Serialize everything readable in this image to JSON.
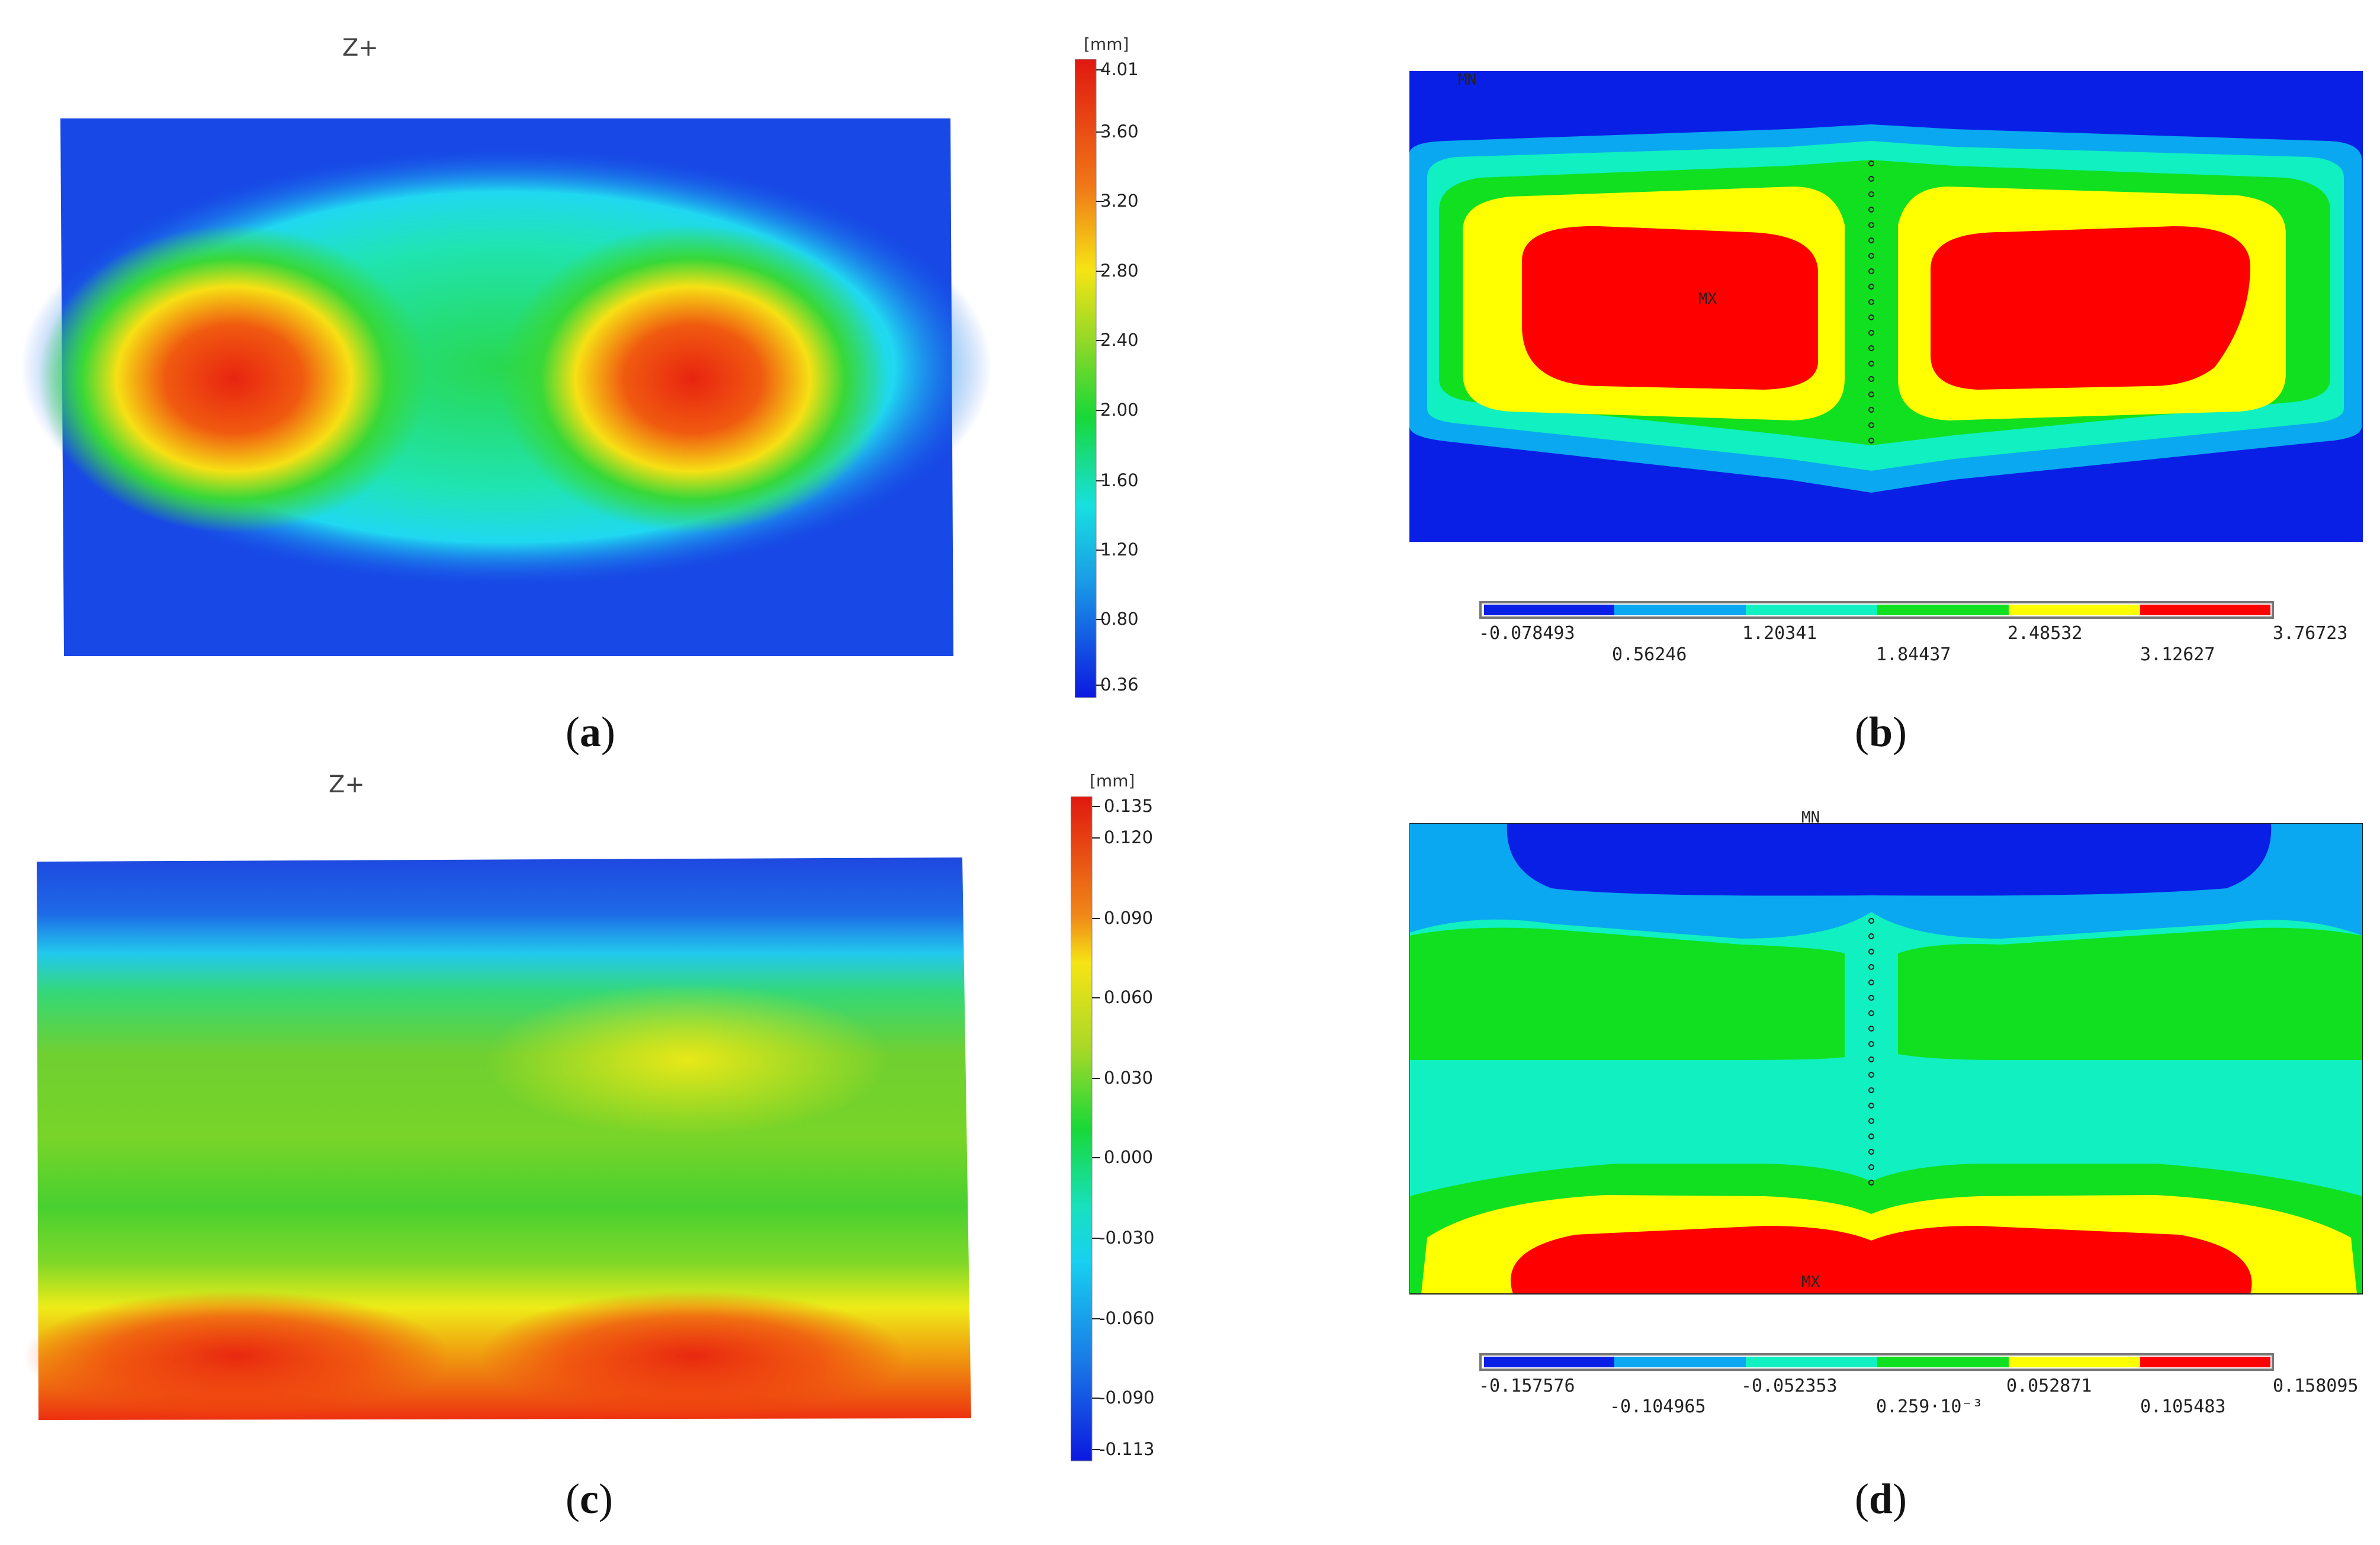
{
  "panels": {
    "a": {
      "title": "Z+",
      "unit": "[mm]",
      "ticks": [
        "4.01",
        "3.60",
        "3.20",
        "2.80",
        "2.40",
        "2.00",
        "1.60",
        "1.20",
        "0.80",
        "0.36"
      ],
      "caption": "a"
    },
    "b": {
      "mn_label": "MN",
      "mx_label": "MX",
      "legend_upper": [
        "-0.078493",
        "1.20341",
        "2.48532",
        "3.76723"
      ],
      "legend_lower": [
        "0.56246",
        "1.84437",
        "3.12627"
      ],
      "caption": "b"
    },
    "c": {
      "title": "Z+",
      "unit": "[mm]",
      "ticks": [
        "0.135",
        "0.120",
        "0.090",
        "0.060",
        "0.030",
        "0.000",
        "-0.030",
        "-0.060",
        "-0.090",
        "-0.113"
      ],
      "caption": "c"
    },
    "d": {
      "mn_label": "MN",
      "mx_label": "MX",
      "legend_upper": [
        "-0.157576",
        "-0.052353",
        "0.052871",
        "0.158095"
      ],
      "legend_lower": [
        "-0.104965",
        "0.259·10⁻³",
        "0.105483"
      ],
      "caption": "d"
    }
  },
  "colors": {
    "blue": "#0a1fe6",
    "light_blue": "#0aa8f0",
    "cyan": "#10f0c0",
    "green": "#10e020",
    "yellow": "#ffff00",
    "red": "#ff0000",
    "dic_blue": "#1238e8",
    "dic_cyan": "#18e8e8",
    "dic_green": "#30d838",
    "dic_yellow": "#f0ec10",
    "dic_red": "#ec2810"
  }
}
